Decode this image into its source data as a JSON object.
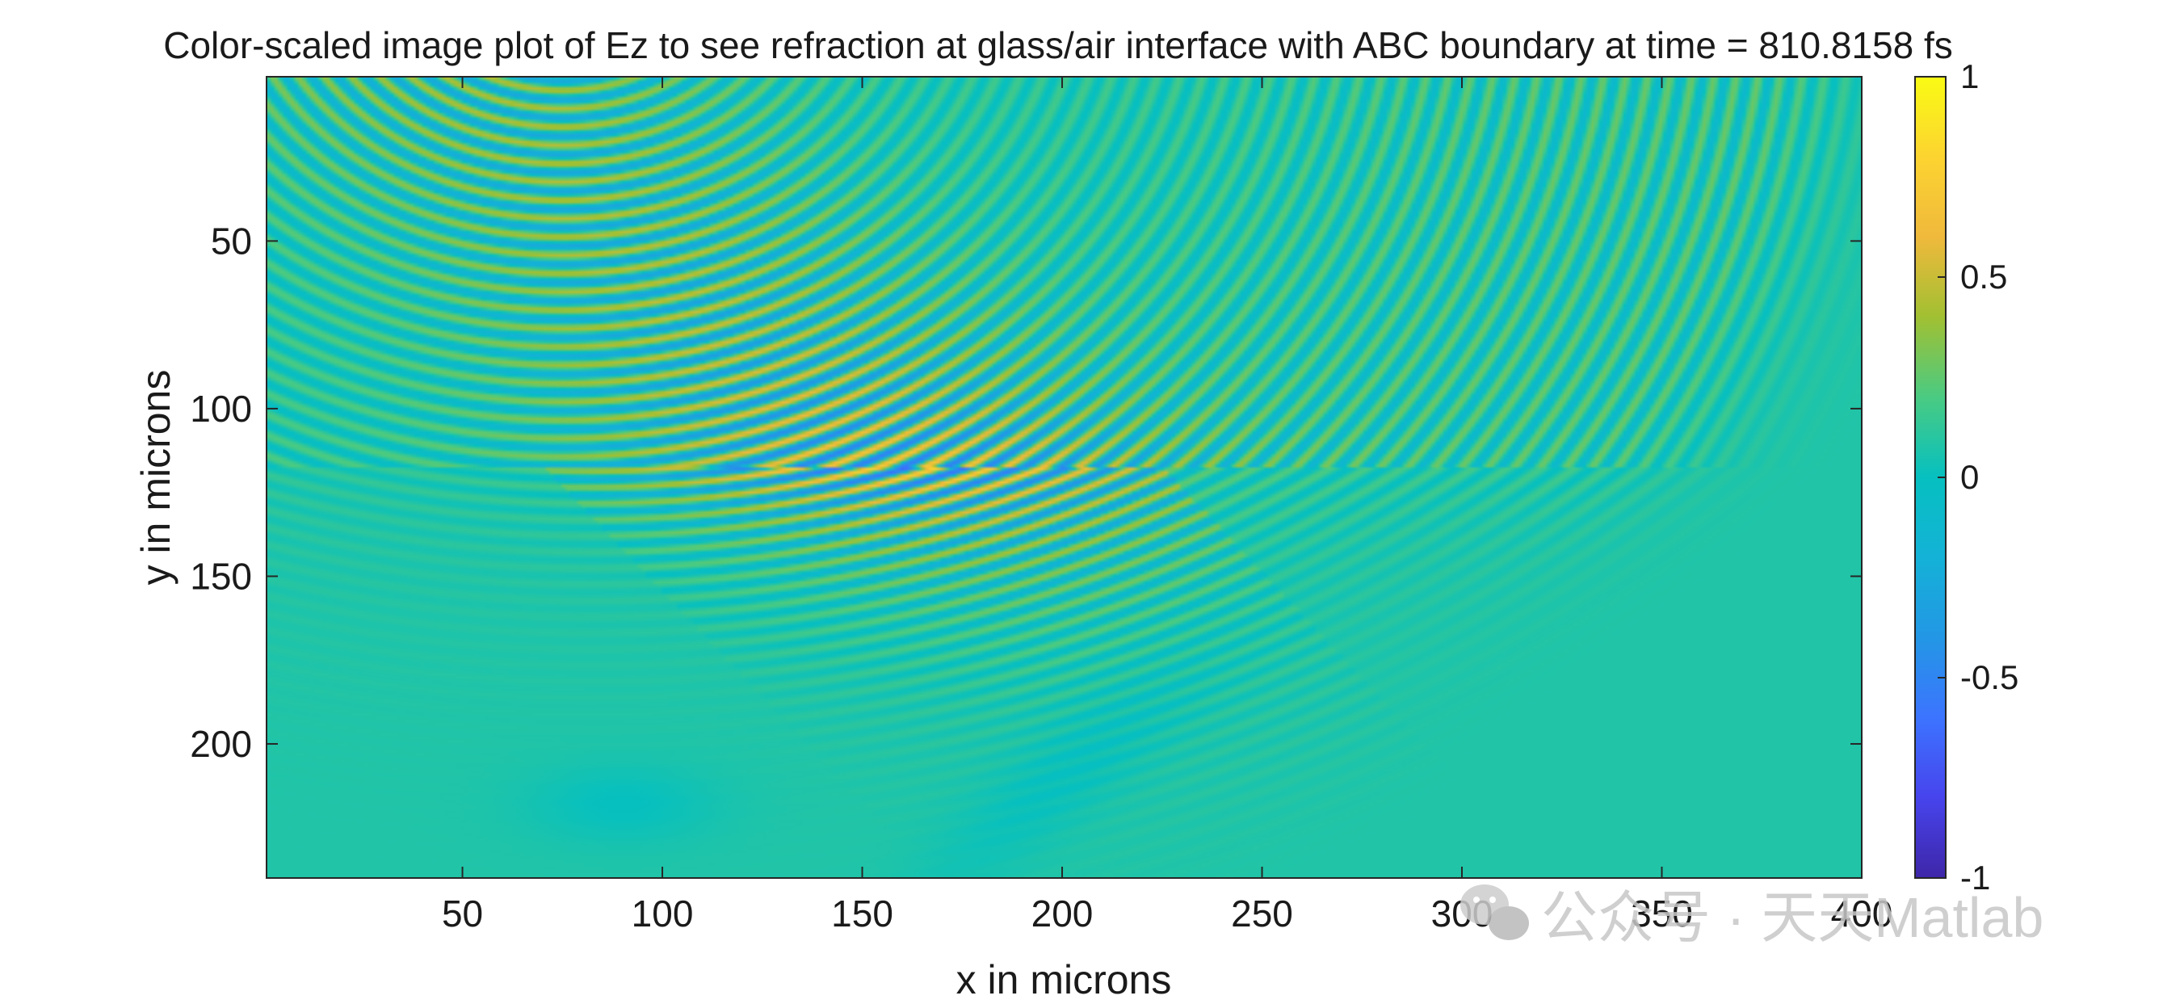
{
  "chart_data": {
    "type": "heatmap",
    "title": "Color-scaled image plot of Ez to see refraction at glass/air interface with ABC boundary at time = 810.8158 fs",
    "xlabel": "x in microns",
    "ylabel": "y in microns",
    "xlim": [
      1,
      400
    ],
    "ylim": [
      1,
      240
    ],
    "y_reversed": true,
    "xticks": [
      50,
      100,
      150,
      200,
      250,
      300,
      350,
      400
    ],
    "xtick_labels": [
      "50",
      "100",
      "150",
      "200",
      "250",
      "300",
      "350",
      "400"
    ],
    "yticks": [
      50,
      100,
      150,
      200
    ],
    "ytick_labels": [
      "50",
      "100",
      "150",
      "200"
    ],
    "colorbar": {
      "range": [
        -1,
        1
      ],
      "ticks": [
        1,
        0.5,
        0,
        -0.5,
        -1
      ],
      "tick_labels": [
        "1",
        "0.5",
        "0",
        "-0.5",
        "-1"
      ],
      "colormap": "parula"
    },
    "field": {
      "source": [
        75,
        -40
      ],
      "interface_y": 118,
      "beam_center": [
        130,
        95
      ],
      "beam_width": 55,
      "background": 0.08
    }
  },
  "watermark": {
    "text": "公众号 · 天天Matlab",
    "icon": "wechat-icon"
  }
}
